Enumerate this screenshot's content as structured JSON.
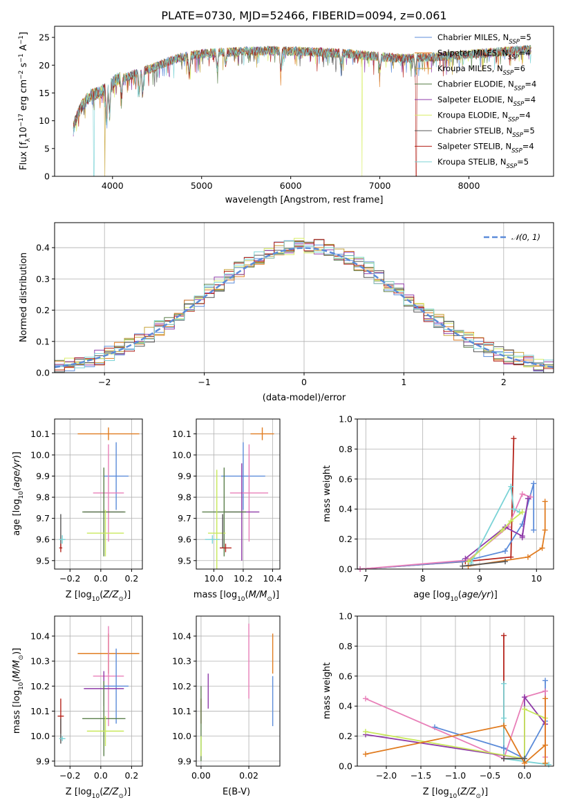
{
  "figure_title": "PLATE=0730, MJD=52466, FIBERID=0094, z=0.061",
  "colors": {
    "Chabrier MILES": "#5b8bd9",
    "Salpeter MILES": "#e07b1f",
    "Kroupa MILES": "#c7a43a",
    "Chabrier ELODIE": "#5a7f4a",
    "Salpeter ELODIE": "#8e3aa8",
    "Kroupa ELODIE": "#d9ee6a",
    "Chabrier STELIB": "#555555",
    "Salpeter STELIB": "#b4221a",
    "Kroupa STELIB": "#7ad3d6",
    "pink": "#e87fb8",
    "lime": "#c8e85a",
    "normal_curve": "#5b8bd9"
  },
  "chart_data": [
    {
      "id": "spectrum",
      "type": "line",
      "title": "PLATE=0730, MJD=52466, FIBERID=0094, z=0.061",
      "xlabel": "wavelength [Angstrom, rest frame]",
      "ylabel": "Flux [f_λ 10^-17 erg cm^-2 s^-1 A^-1]",
      "xlim": [
        3350,
        8950
      ],
      "ylim": [
        0,
        27
      ],
      "xticks": [
        4000,
        5000,
        6000,
        7000,
        8000
      ],
      "yticks": [
        0,
        5,
        10,
        15,
        20,
        25
      ],
      "grid": false,
      "legend_position": "right",
      "legend": [
        "Chabrier MILES, N_SSP=5",
        "Salpeter MILES, N_SSP=4",
        "Kroupa MILES, N_SSP=6",
        "Chabrier ELODIE, N_SSP=4",
        "Salpeter ELODIE, N_SSP=4",
        "Kroupa ELODIE, N_SSP=4",
        "Chabrier STELIB, N_SSP=5",
        "Salpeter STELIB, N_SSP=4",
        "Kroupa STELIB, N_SSP=5"
      ],
      "legend_parts": [
        {
          "pre": "Chabrier MILES, N",
          "sub": "SSP",
          "post": "=5"
        },
        {
          "pre": "Salpeter MILES, N",
          "sub": "SSP",
          "post": "=4"
        },
        {
          "pre": "Kroupa MILES, N",
          "sub": "SSP",
          "post": "=6"
        },
        {
          "pre": "Chabrier ELODIE, N",
          "sub": "SSP",
          "post": "=4"
        },
        {
          "pre": "Salpeter ELODIE, N",
          "sub": "SSP",
          "post": "=4"
        },
        {
          "pre": "Kroupa ELODIE, N",
          "sub": "SSP",
          "post": "=4"
        },
        {
          "pre": "Chabrier STELIB, N",
          "sub": "SSP",
          "post": "=5"
        },
        {
          "pre": "Salpeter STELIB, N",
          "sub": "SSP",
          "post": "=4"
        },
        {
          "pre": "Kroupa STELIB, N",
          "sub": "SSP",
          "post": "=5"
        }
      ],
      "continuum": {
        "x": [
          3560,
          3650,
          3750,
          3850,
          3950,
          4050,
          4150,
          4300,
          4450,
          4600,
          4800,
          5000,
          5200,
          5500,
          5800,
          6100,
          6400,
          6700,
          7000,
          7300,
          7600,
          7900,
          8200,
          8500,
          8700
        ],
        "y": [
          9,
          12.5,
          14.5,
          15,
          16,
          17.5,
          17.8,
          18.8,
          19.5,
          20.5,
          21.5,
          22,
          22.3,
          22.5,
          22.6,
          22.5,
          22.3,
          22.0,
          21.5,
          21.2,
          21.5,
          21.8,
          22.2,
          22.6,
          22.8
        ]
      },
      "absorption_lines": [
        {
          "x": 3933,
          "y": 10
        },
        {
          "x": 3968,
          "y": 11
        },
        {
          "x": 4102,
          "y": 14
        },
        {
          "x": 4300,
          "y": 14.5
        },
        {
          "x": 4340,
          "y": 15
        },
        {
          "x": 4861,
          "y": 18
        },
        {
          "x": 5175,
          "y": 19
        },
        {
          "x": 5270,
          "y": 20
        },
        {
          "x": 5890,
          "y": 19
        },
        {
          "x": 6563,
          "y": 19.5
        },
        {
          "x": 7000,
          "y": 19
        },
        {
          "x": 7400,
          "y": 18.5
        }
      ],
      "deep_dips": [
        {
          "x": 3790,
          "y": 0,
          "series": "Kroupa STELIB"
        },
        {
          "x": 3915,
          "y": 0,
          "series": "Kroupa MILES"
        },
        {
          "x": 6800,
          "y": 0,
          "series": "Kroupa ELODIE"
        },
        {
          "x": 7410,
          "y": 0,
          "series": "Salpeter STELIB"
        }
      ]
    },
    {
      "id": "residual_histogram",
      "type": "bar",
      "xlabel": "(data-model)/error",
      "ylabel": "Normed distribution",
      "xlim": [
        -2.5,
        2.5
      ],
      "ylim": [
        0,
        0.48
      ],
      "xticks": [
        -2,
        -1,
        0,
        1,
        2
      ],
      "yticks": [
        0.0,
        0.1,
        0.2,
        0.3,
        0.4
      ],
      "grid": true,
      "legend_position": "top-right",
      "legend": [
        "𝒩(0, 1)"
      ],
      "bin_width": 0.1,
      "bin_start": -2.5,
      "reference_curve": {
        "name": "𝒩(0, 1)",
        "mean": 0,
        "sigma": 1
      },
      "series_names": [
        "Chabrier MILES",
        "Salpeter MILES",
        "Kroupa MILES",
        "Chabrier ELODIE",
        "Salpeter ELODIE",
        "Kroupa ELODIE",
        "Chabrier STELIB",
        "Salpeter STELIB",
        "Kroupa STELIB"
      ]
    },
    {
      "id": "age_vs_Z",
      "type": "scatter",
      "xlabel": "Z [log10(Z/Z_⊙)]",
      "ylabel": "age [log10(age/yr)]",
      "xlim": [
        -0.3,
        0.27
      ],
      "ylim": [
        9.46,
        10.17
      ],
      "xticks": [
        -0.2,
        0.0,
        0.2
      ],
      "yticks": [
        9.5,
        9.6,
        9.7,
        9.8,
        9.9,
        10.0,
        10.1
      ],
      "grid": true,
      "points": [
        {
          "series": "Salpeter MILES",
          "x": 0.05,
          "y": 10.1,
          "xerr": 0.2,
          "yerr": 0.03
        },
        {
          "series": "Chabrier MILES",
          "x": 0.1,
          "y": 9.9,
          "xerr": 0.08,
          "yerr": 0.16
        },
        {
          "series": "pink",
          "x": 0.05,
          "y": 9.82,
          "xerr": 0.1,
          "yerr": 0.23
        },
        {
          "series": "Salpeter ELODIE",
          "x": 0.02,
          "y": 9.73,
          "xerr": 0.13,
          "yerr": 0.0
        },
        {
          "series": "Chabrier ELODIE",
          "x": 0.02,
          "y": 9.73,
          "xerr": 0.14,
          "yerr": 0.21
        },
        {
          "series": "lime",
          "x": 0.03,
          "y": 9.63,
          "xerr": 0.12,
          "yerr": 0.11
        },
        {
          "series": "Chabrier STELIB",
          "x": -0.26,
          "y": 9.64,
          "xerr": 0.0,
          "yerr": 0.08
        },
        {
          "series": "Kroupa STELIB",
          "x": -0.25,
          "y": 9.6,
          "xerr": 0.02,
          "yerr": 0.02
        },
        {
          "series": "Salpeter STELIB",
          "x": -0.26,
          "y": 9.56,
          "xerr": 0.01,
          "yerr": 0.02
        }
      ]
    },
    {
      "id": "age_vs_mass",
      "type": "scatter",
      "xlabel": "mass [log10(M/M_⊙)]",
      "ylabel": "",
      "xlim": [
        9.88,
        10.45
      ],
      "ylim": [
        9.46,
        10.17
      ],
      "xticks": [
        10.0,
        10.2,
        10.4
      ],
      "xtick_labels": [
        "10.0",
        "10.2",
        "10.4"
      ],
      "yticks": [
        9.5,
        9.6,
        9.7,
        9.8,
        9.9,
        10.0,
        10.1
      ],
      "grid": true,
      "points": [
        {
          "series": "Salpeter MILES",
          "x": 10.33,
          "y": 10.1,
          "xerr": 0.08,
          "yerr": 0.03
        },
        {
          "series": "Chabrier MILES",
          "x": 10.2,
          "y": 9.9,
          "xerr": 0.15,
          "yerr": 0.16
        },
        {
          "series": "pink",
          "x": 10.24,
          "y": 9.82,
          "xerr": 0.13,
          "yerr": 0.23
        },
        {
          "series": "Salpeter ELODIE",
          "x": 10.19,
          "y": 9.73,
          "xerr": 0.12,
          "yerr": 0.23
        },
        {
          "series": "Chabrier ELODIE",
          "x": 10.07,
          "y": 9.73,
          "xerr": 0.15,
          "yerr": 0.21
        },
        {
          "series": "lime",
          "x": 10.02,
          "y": 9.63,
          "xerr": 0.06,
          "yerr": 0.3
        },
        {
          "series": "Chabrier STELIB",
          "x": 10.06,
          "y": 9.64,
          "xerr": 0.0,
          "yerr": 0.08
        },
        {
          "series": "Kroupa STELIB",
          "x": 9.99,
          "y": 9.6,
          "xerr": 0.05,
          "yerr": 0.02
        },
        {
          "series": "Salpeter STELIB",
          "x": 10.08,
          "y": 9.56,
          "xerr": 0.04,
          "yerr": 0.02
        }
      ]
    },
    {
      "id": "weight_vs_age",
      "type": "line",
      "xlabel": "age [log10(age/yr)]",
      "ylabel": "mass weight",
      "xlim": [
        6.85,
        10.3
      ],
      "ylim": [
        0,
        1.0
      ],
      "xticks": [
        7,
        8,
        9,
        10
      ],
      "yticks": [
        0.0,
        0.2,
        0.4,
        0.6,
        0.8,
        1.0
      ],
      "grid": true,
      "series": [
        {
          "name": "Salpeter STELIB",
          "x": [
            6.9,
            8.75,
            9.55,
            9.6
          ],
          "y": [
            0.0,
            0.05,
            0.08,
            0.87
          ]
        },
        {
          "name": "Chabrier MILES",
          "x": [
            6.9,
            8.7,
            9.45,
            9.75,
            9.95,
            9.95
          ],
          "y": [
            0.0,
            0.05,
            0.12,
            0.3,
            0.57,
            0.26
          ]
        },
        {
          "name": "pink",
          "x": [
            6.9,
            8.8,
            9.5,
            9.75,
            9.9
          ],
          "y": [
            0.0,
            0.06,
            0.28,
            0.5,
            0.48
          ]
        },
        {
          "name": "Salpeter ELODIE",
          "x": [
            8.75,
            9.45,
            9.75,
            9.85,
            9.75
          ],
          "y": [
            0.07,
            0.28,
            0.22,
            0.47,
            0.21
          ]
        },
        {
          "name": "Kroupa STELIB",
          "x": [
            8.85,
            9.55,
            9.6,
            9.7
          ],
          "y": [
            0.04,
            0.55,
            0.4,
            0.38
          ]
        },
        {
          "name": "lime",
          "x": [
            8.8,
            9.4,
            9.55,
            9.75
          ],
          "y": [
            0.05,
            0.26,
            0.32,
            0.38
          ]
        },
        {
          "name": "Salpeter MILES",
          "x": [
            8.8,
            9.85,
            10.1,
            10.15,
            10.15
          ],
          "y": [
            0.02,
            0.08,
            0.14,
            0.26,
            0.45
          ]
        },
        {
          "name": "Chabrier STELIB",
          "x": [
            8.7,
            9.45
          ],
          "y": [
            0.02,
            0.05
          ]
        }
      ]
    },
    {
      "id": "mass_vs_Z",
      "type": "scatter",
      "xlabel": "Z [log10(Z/Z_⊙)]",
      "ylabel": "mass [log10(M/M_⊙)]",
      "xlim": [
        -0.3,
        0.27
      ],
      "ylim": [
        9.88,
        10.48
      ],
      "xticks": [
        -0.2,
        0.0,
        0.2
      ],
      "yticks": [
        9.9,
        10.0,
        10.1,
        10.2,
        10.3,
        10.4
      ],
      "grid": true,
      "points": [
        {
          "series": "Salpeter MILES",
          "x": 0.05,
          "y": 10.33,
          "xerr": 0.2,
          "yerr": 0.08
        },
        {
          "series": "pink",
          "x": 0.05,
          "y": 10.24,
          "xerr": 0.1,
          "yerr": 0.2
        },
        {
          "series": "Chabrier MILES",
          "x": 0.1,
          "y": 10.2,
          "xerr": 0.08,
          "yerr": 0.15
        },
        {
          "series": "Salpeter ELODIE",
          "x": 0.02,
          "y": 10.19,
          "xerr": 0.13,
          "yerr": 0.07
        },
        {
          "series": "Chabrier ELODIE",
          "x": 0.02,
          "y": 10.07,
          "xerr": 0.14,
          "yerr": 0.15
        },
        {
          "series": "lime",
          "x": 0.03,
          "y": 10.02,
          "xerr": 0.12,
          "yerr": 0.06
        },
        {
          "series": "Salpeter STELIB",
          "x": -0.26,
          "y": 10.08,
          "xerr": 0.02,
          "yerr": 0.07
        },
        {
          "series": "Chabrier STELIB",
          "x": -0.26,
          "y": 10.02,
          "xerr": 0.0,
          "yerr": 0.05
        },
        {
          "series": "Kroupa STELIB",
          "x": -0.25,
          "y": 9.99,
          "xerr": 0.02,
          "yerr": 0.01
        }
      ]
    },
    {
      "id": "mass_vs_EBV",
      "type": "scatter",
      "xlabel": "E(B-V)",
      "ylabel": "",
      "xlim": [
        -0.002,
        0.033
      ],
      "ylim": [
        9.88,
        10.48
      ],
      "xticks": [
        0.0,
        0.02
      ],
      "xtick_labels": [
        "0.00",
        "0.02"
      ],
      "yticks": [
        9.9,
        10.0,
        10.1,
        10.2,
        10.3,
        10.4
      ],
      "grid": true,
      "points": [
        {
          "series": "pink",
          "x": 0.02,
          "y": 10.3,
          "xerr": 0,
          "yerr": 0.15
        },
        {
          "series": "Salpeter MILES",
          "x": 0.03,
          "y": 10.33,
          "xerr": 0,
          "yerr": 0.08
        },
        {
          "series": "Chabrier MILES",
          "x": 0.03,
          "y": 10.14,
          "xerr": 0,
          "yerr": 0.1
        },
        {
          "series": "Salpeter ELODIE",
          "x": 0.003,
          "y": 10.18,
          "xerr": 0,
          "yerr": 0.07
        },
        {
          "series": "Salpeter STELIB",
          "x": 0.0,
          "y": 10.1,
          "xerr": 0,
          "yerr": 0.05
        },
        {
          "series": "Chabrier ELODIE",
          "x": 0.0,
          "y": 10.05,
          "xerr": 0,
          "yerr": 0.15
        },
        {
          "series": "Kroupa STELIB",
          "x": 0.0,
          "y": 9.97,
          "xerr": 0,
          "yerr": 0.03
        },
        {
          "series": "lime",
          "x": 0.0,
          "y": 9.96,
          "xerr": 0,
          "yerr": 0.04
        }
      ]
    },
    {
      "id": "weight_vs_Z",
      "type": "line",
      "xlabel": "Z [log10(Z/Z_⊙)]",
      "ylabel": "mass weight",
      "xlim": [
        -2.42,
        0.42
      ],
      "ylim": [
        0,
        1.0
      ],
      "xticks": [
        -2.0,
        -1.5,
        -1.0,
        -0.5,
        0.0
      ],
      "xtick_labels": [
        "−2.0",
        "−1.5",
        "−1.0",
        "−0.5",
        "0.0"
      ],
      "yticks": [
        0.0,
        0.2,
        0.4,
        0.6,
        0.8,
        1.0
      ],
      "grid": true,
      "series": [
        {
          "name": "Salpeter STELIB",
          "x": [
            -0.3,
            -0.3
          ],
          "y": [
            0.05,
            0.87
          ]
        },
        {
          "name": "Kroupa STELIB",
          "x": [
            -0.3,
            -0.3,
            -0.3,
            0.35
          ],
          "y": [
            0.55,
            0.32,
            0.05,
            0.01
          ]
        },
        {
          "name": "Chabrier MILES",
          "x": [
            -1.3,
            -0.3,
            0.0,
            0.3,
            0.3
          ],
          "y": [
            0.26,
            0.12,
            0.05,
            0.3,
            0.57
          ]
        },
        {
          "name": "pink",
          "x": [
            -2.3,
            -0.3,
            0.0,
            0.3,
            0.3
          ],
          "y": [
            0.45,
            0.05,
            0.46,
            0.5,
            0.06
          ]
        },
        {
          "name": "Salpeter ELODIE",
          "x": [
            -2.3,
            0.0,
            0.0,
            0.3
          ],
          "y": [
            0.21,
            0.05,
            0.46,
            0.28
          ]
        },
        {
          "name": "lime",
          "x": [
            -2.3,
            0.0,
            0.0,
            0.3
          ],
          "y": [
            0.23,
            0.05,
            0.38,
            0.32
          ]
        },
        {
          "name": "Salpeter MILES",
          "x": [
            -2.3,
            -0.3,
            0.0,
            0.3,
            0.3,
            0.3
          ],
          "y": [
            0.08,
            0.27,
            0.02,
            0.14,
            0.45,
            0.02
          ]
        },
        {
          "name": "Chabrier STELIB",
          "x": [
            -0.3,
            0.0
          ],
          "y": [
            0.05,
            0.05
          ]
        }
      ]
    }
  ]
}
